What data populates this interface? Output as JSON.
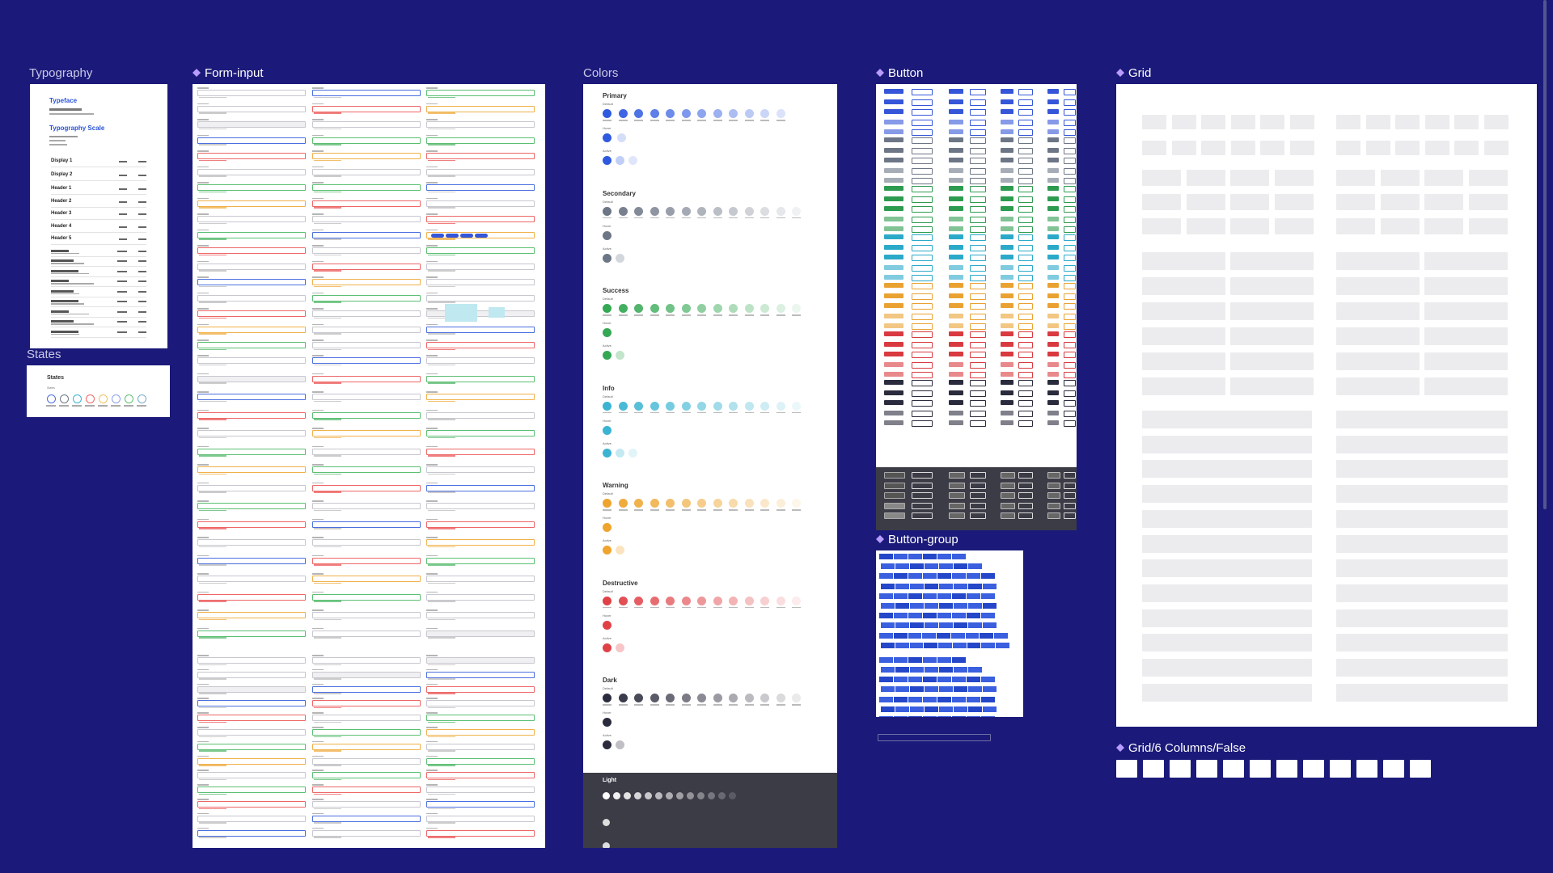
{
  "labels": {
    "typography": "Typography",
    "states": "States",
    "form_input": "Form-input",
    "colors": "Colors",
    "button": "Button",
    "button_group": "Button-group",
    "grid": "Grid",
    "grid6": "Grid/6 Columns/False"
  },
  "typography": {
    "typeface": "Typeface",
    "scale": "Typography Scale",
    "rows": [
      {
        "name": "Display 1"
      },
      {
        "name": "Display 2"
      },
      {
        "name": "Header 1"
      },
      {
        "name": "Header 2"
      },
      {
        "name": "Header 3"
      },
      {
        "name": "Header 4"
      },
      {
        "name": "Header 5"
      }
    ]
  },
  "states": {
    "title": "States",
    "sub": "States"
  },
  "colors": {
    "groups": [
      {
        "name": "Primary",
        "color": "#2f5ae0"
      },
      {
        "name": "Secondary",
        "color": "#6d7686"
      },
      {
        "name": "Success",
        "color": "#34a853"
      },
      {
        "name": "Info",
        "color": "#3ab4d2"
      },
      {
        "name": "Warning",
        "color": "#eea42d"
      },
      {
        "name": "Destructive",
        "color": "#e04147"
      },
      {
        "name": "Dark",
        "color": "#2a2b3c"
      }
    ],
    "light": {
      "name": "Light"
    },
    "default_label": "Default",
    "hover_label": "Hover",
    "active_label": "Active"
  }
}
